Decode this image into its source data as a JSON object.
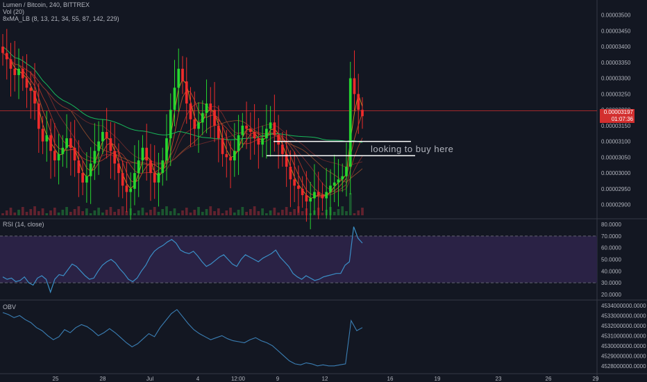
{
  "header": {
    "symbol_line": "Lumen / Bitcoin, 240, BITTREX",
    "vol_label": "Vol (20)",
    "ma_label": "8xMA_LB (8, 13, 21, 34, 55, 87, 142, 229)"
  },
  "rsi_label": "RSI (14, close)",
  "obv_label": "OBV",
  "annotation": "looking to buy here",
  "last_price": {
    "value": "0.00003197",
    "countdown": "01:07:36"
  },
  "colors": {
    "background": "#131722",
    "up": "#26d62f",
    "down": "#ef2b2b",
    "rsi_line": "#3b8fc7",
    "rsi_band": "#2a2245",
    "obv_line": "#3b7fb5",
    "ma_green": "#18b85a",
    "price_line": "#d32f2f"
  },
  "chart_data": [
    {
      "type": "candlestick",
      "title": "Lumen / Bitcoin, 240, BITTREX",
      "ylim": [
        2.875e-05,
        3.53e-05
      ],
      "y_ticks": [
        "0.00003500",
        "0.00003450",
        "0.00003400",
        "0.00003350",
        "0.00003300",
        "0.00003250",
        "0.00003200",
        "0.00003150",
        "0.00003100",
        "0.00003050",
        "0.00003000",
        "0.00002950",
        "0.00002900"
      ],
      "x_ticks": [
        "25",
        "28",
        "Jul",
        "4",
        "12:00",
        "9",
        "12",
        "16",
        "19",
        "23",
        "26",
        "29"
      ],
      "close_series": [
        3.38e-05,
        3.36e-05,
        3.33e-05,
        3.31e-05,
        3.33e-05,
        3.3e-05,
        3.27e-05,
        3.26e-05,
        3.22e-05,
        3.14e-05,
        3.1e-05,
        3.12e-05,
        3.07e-05,
        3.04e-05,
        3.06e-05,
        3.08e-05,
        3.11e-05,
        3.08e-05,
        3.04e-05,
        3e-05,
        2.97e-05,
        2.99e-05,
        3.03e-05,
        3.07e-05,
        3.1e-05,
        3.13e-05,
        3.11e-05,
        3.07e-05,
        3.03e-05,
        3e-05,
        2.96e-05,
        2.94e-05,
        2.95e-05,
        3e-05,
        3.04e-05,
        3.08e-05,
        3.04e-05,
        3e-05,
        2.97e-05,
        3e-05,
        3.04e-05,
        3.11e-05,
        3.2e-05,
        3.27e-05,
        3.33e-05,
        3.29e-05,
        3.22e-05,
        3.17e-05,
        3.14e-05,
        3.16e-05,
        3.19e-05,
        3.22e-05,
        3.2e-05,
        3.15e-05,
        3.11e-05,
        3.06e-05,
        3.05e-05,
        3.04e-05,
        3.07e-05,
        3.12e-05,
        3.15e-05,
        3.14e-05,
        3.13e-05,
        3.11e-05,
        3.09e-05,
        3.11e-05,
        3.14e-05,
        3.16e-05,
        3.12e-05,
        3.09e-05,
        3.06e-05,
        3.02e-05,
        2.98e-05,
        2.96e-05,
        2.95e-05,
        2.93e-05,
        2.91e-05,
        2.92e-05,
        2.94e-05,
        2.93e-05,
        2.92e-05,
        2.94e-05,
        2.96e-05,
        2.97e-05,
        2.98e-05,
        2.99e-05,
        3.02e-05,
        3.3e-05,
        3.25e-05,
        3.2e-05,
        3.18e-05
      ],
      "horizontal_levels": [
        {
          "value": 3.1e-05,
          "from": "Jul 8",
          "to": "Jul 14"
        },
        {
          "value": 3.055e-05,
          "from": "Jul 8",
          "to": "Jul 14"
        }
      ],
      "current_price": 3.197e-05
    },
    {
      "type": "line",
      "title": "RSI (14, close)",
      "ylim": [
        17,
        83
      ],
      "y_ticks": [
        "80.0000",
        "70.0000",
        "60.0000",
        "50.0000",
        "40.0000",
        "30.0000",
        "20.0000"
      ],
      "band": [
        30,
        70
      ],
      "values": [
        35,
        33,
        34,
        31,
        32,
        35,
        30,
        28,
        34,
        36,
        33,
        22,
        33,
        37,
        36,
        41,
        46,
        44,
        40,
        36,
        33,
        34,
        40,
        45,
        48,
        50,
        47,
        42,
        38,
        33,
        31,
        34,
        40,
        45,
        52,
        57,
        60,
        62,
        65,
        67,
        64,
        58,
        56,
        55,
        57,
        53,
        48,
        44,
        46,
        49,
        52,
        54,
        50,
        46,
        44,
        50,
        54,
        52,
        50,
        48,
        51,
        53,
        55,
        58,
        52,
        48,
        44,
        38,
        35,
        33,
        36,
        34,
        32,
        33,
        35,
        36,
        37,
        38,
        38,
        45,
        48,
        78,
        68,
        64
      ],
      "xlabel": "",
      "ylabel": ""
    },
    {
      "type": "line",
      "title": "OBV",
      "ylim": [
        4527500000,
        4534200000
      ],
      "y_ticks": [
        "4534000000.0000",
        "4533000000.0000",
        "4532000000.0000",
        "4531000000.0000",
        "4530000000.0000",
        "4529000000.0000",
        "4528000000.0000"
      ],
      "values": [
        4533300000,
        4533100000,
        4532800000,
        4533000000,
        4532600000,
        4532300000,
        4531800000,
        4531500000,
        4531000000,
        4530600000,
        4530900000,
        4531600000,
        4531300000,
        4531800000,
        4532100000,
        4531900000,
        4531500000,
        4531000000,
        4531300000,
        4531700000,
        4531300000,
        4530800000,
        4530300000,
        4529900000,
        4530200000,
        4530700000,
        4531200000,
        4530900000,
        4531800000,
        4532500000,
        4533200000,
        4533600000,
        4532900000,
        4532200000,
        4531600000,
        4531200000,
        4530900000,
        4530600000,
        4530800000,
        4531000000,
        4530700000,
        4530500000,
        4530400000,
        4530300000,
        4530600000,
        4530800000,
        4530500000,
        4530300000,
        4530000000,
        4529500000,
        4529000000,
        4528500000,
        4528200000,
        4528100000,
        4528300000,
        4528200000,
        4528000000,
        4528100000,
        4528000000,
        4528000000,
        4528100000,
        4528200000,
        4532500000,
        4531500000,
        4531800000
      ],
      "xlabel": "",
      "ylabel": ""
    }
  ]
}
